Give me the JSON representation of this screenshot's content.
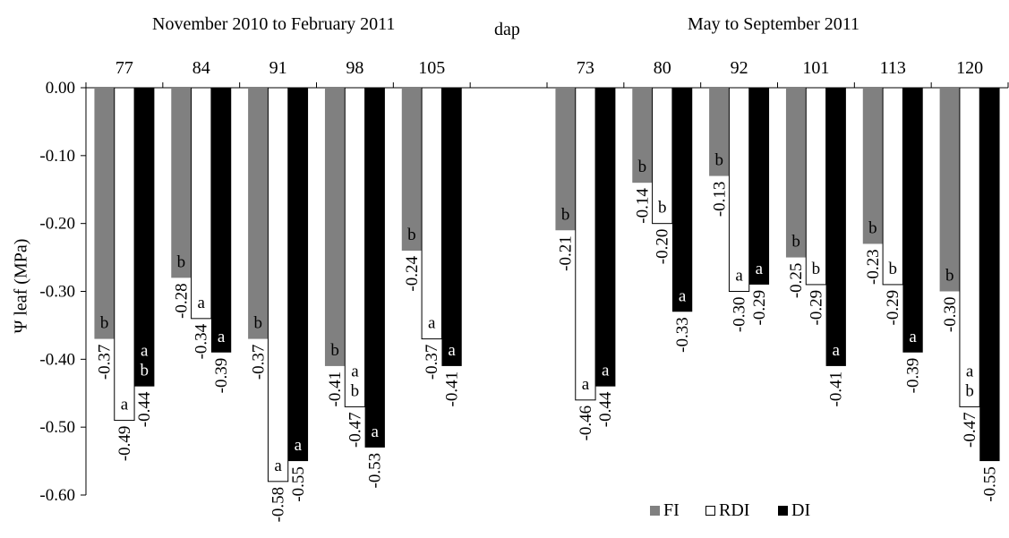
{
  "chart_data": {
    "type": "bar",
    "period_labels": [
      "November 2010 to February 2011",
      "May to September 2011"
    ],
    "xlabel": "dap",
    "ylabel": "Ψ leaf (MPa)",
    "ylim": [
      -0.6,
      0.0
    ],
    "yticks": [
      "0.00",
      "-0.10",
      "-0.20",
      "-0.30",
      "-0.40",
      "-0.50",
      "-0.60"
    ],
    "categories": [
      "77",
      "84",
      "91",
      "98",
      "105",
      "",
      "73",
      "80",
      "92",
      "101",
      "113",
      "120"
    ],
    "series": [
      {
        "name": "FI",
        "color": "#808080",
        "values": [
          -0.37,
          -0.28,
          -0.37,
          -0.41,
          -0.24,
          null,
          -0.21,
          -0.14,
          -0.13,
          -0.25,
          -0.23,
          -0.3
        ],
        "value_labels": [
          "-0.37",
          "-0.28",
          "-0.37",
          "-0.41",
          "-0.24",
          null,
          "-0.21",
          "-0.14",
          "-0.13",
          "-0.25",
          "-0.23",
          "-0.30"
        ],
        "letters": [
          "b",
          "b",
          "b",
          "b",
          "b",
          null,
          "b",
          "b",
          "b",
          "b",
          "b",
          "b"
        ]
      },
      {
        "name": "RDI",
        "color": "#ffffff",
        "values": [
          -0.49,
          -0.34,
          -0.58,
          -0.47,
          -0.37,
          null,
          -0.46,
          -0.2,
          -0.3,
          -0.29,
          -0.29,
          -0.47
        ],
        "value_labels": [
          "-0.49",
          "-0.34",
          "-0.58",
          "-0.47",
          "-0.37",
          null,
          "-0.46",
          "-0.20",
          "-0.30",
          "-0.29",
          "-0.29",
          "-0.47"
        ],
        "letters": [
          "a",
          "a",
          "a",
          "a\nb",
          "a",
          null,
          "a",
          "b",
          "a",
          "b",
          "b",
          "a\nb"
        ]
      },
      {
        "name": "DI",
        "color": "#000000",
        "values": [
          -0.44,
          -0.39,
          -0.55,
          -0.53,
          -0.41,
          null,
          -0.44,
          -0.33,
          -0.29,
          -0.41,
          -0.39,
          -0.55
        ],
        "value_labels": [
          "-0.44",
          "-0.39",
          "-0.55",
          "-0.53",
          "-0.41",
          null,
          "-0.44",
          "-0.33",
          "-0.29",
          "-0.41",
          "-0.39",
          "-0.55"
        ],
        "letters": [
          "a\nb",
          "a",
          "a",
          "a",
          "a",
          null,
          "a",
          "a",
          "a",
          "a",
          "a",
          ""
        ]
      }
    ],
    "legend": [
      "FI",
      "RDI",
      "DI"
    ],
    "legend_position": "bottom-right",
    "grid": false
  }
}
